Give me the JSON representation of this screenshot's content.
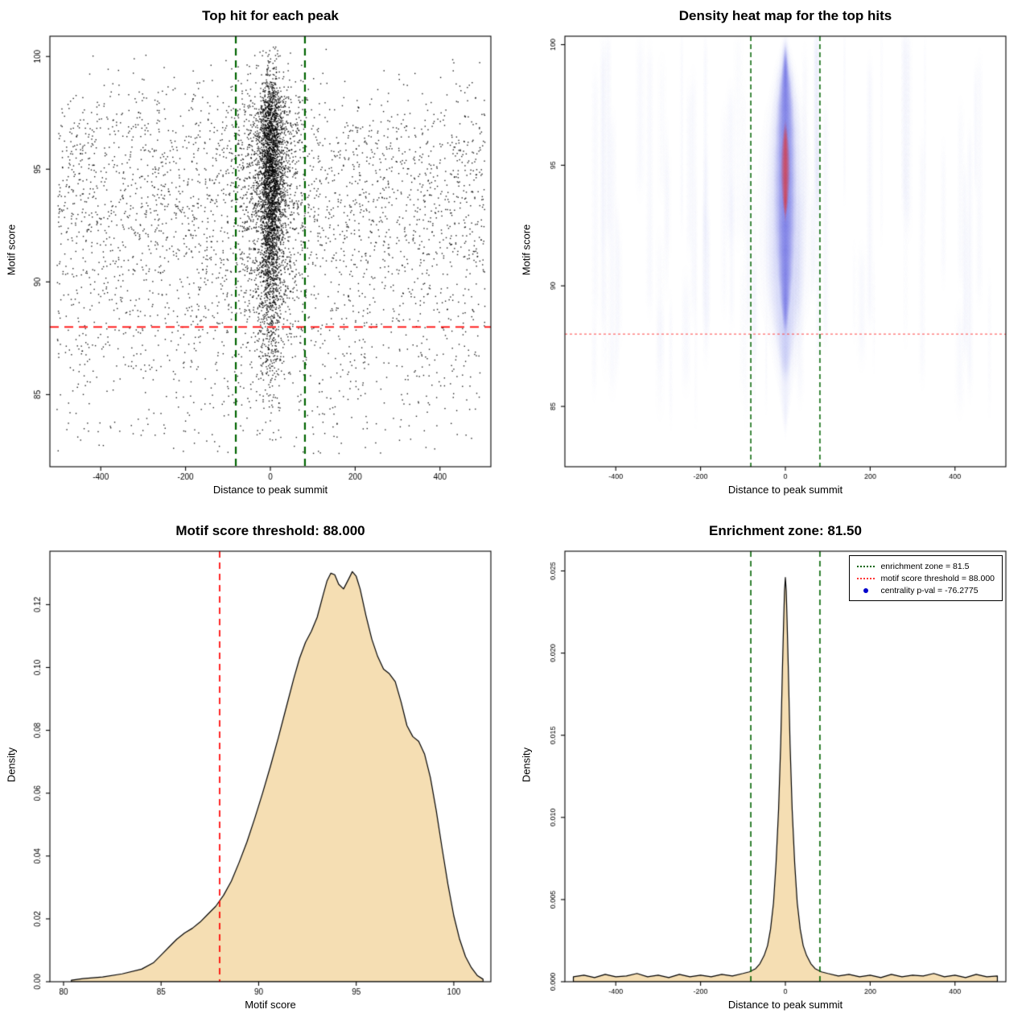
{
  "page": {
    "background": "#ffffff"
  },
  "chart_data": [
    {
      "id": "top-hit-scatter",
      "type": "scatter",
      "title": "Top hit for each peak",
      "xlabel": "Distance to peak summit",
      "ylabel": "Motif score",
      "xlim": [
        -520,
        520
      ],
      "ylim": [
        81.8,
        100.9
      ],
      "xticks": [
        {
          "v": -400,
          "label": "-400"
        },
        {
          "v": -200,
          "label": "-200"
        },
        {
          "v": 0,
          "label": "0"
        },
        {
          "v": 200,
          "label": "200"
        },
        {
          "v": 400,
          "label": "400"
        }
      ],
      "yticks": [
        {
          "v": 85,
          "label": "85"
        },
        {
          "v": 90,
          "label": "90"
        },
        {
          "v": 95,
          "label": "95"
        },
        {
          "v": 100,
          "label": "100"
        }
      ],
      "point_color": "#000000",
      "reference_lines": {
        "motif_score_threshold": {
          "value": 88,
          "orientation": "horizontal",
          "color": "#ff0000",
          "style": "dashed"
        },
        "enrichment_zone": {
          "values": [
            -81.5,
            81.5
          ],
          "orientation": "vertical",
          "color": "#006400",
          "style": "dashed"
        }
      },
      "points": {
        "seed": 1234,
        "n_background": 3200,
        "n_mid": 1400,
        "n_core": 2600,
        "mid_sigma_x": 38,
        "core_sigma_x": 13,
        "background_y_mix": [
          [
            0.16,
            96.8,
            1.4
          ],
          [
            0.3,
            94.2,
            1.6
          ],
          [
            0.22,
            92.0,
            1.8
          ],
          [
            0.18,
            89.5,
            2.0
          ],
          [
            0.09,
            86.5,
            1.8
          ],
          [
            0.05,
            84.3,
            1.5
          ]
        ],
        "cluster_y_mix": [
          [
            0.25,
            97.0,
            1.3
          ],
          [
            0.4,
            94.5,
            1.7
          ],
          [
            0.2,
            92.0,
            1.8
          ],
          [
            0.12,
            89.5,
            2.0
          ],
          [
            0.03,
            87.0,
            1.5
          ]
        ]
      }
    },
    {
      "id": "density-heatmap",
      "type": "heatmap",
      "title": "Density heat map for the top hits",
      "xlabel": "Distance to peak summit",
      "ylabel": "Motif score",
      "xlim": [
        -520,
        520
      ],
      "ylim": [
        82.5,
        100.35
      ],
      "xticks": [
        {
          "v": -400,
          "label": "-400"
        },
        {
          "v": -200,
          "label": "-200"
        },
        {
          "v": 0,
          "label": "0"
        },
        {
          "v": 200,
          "label": "200"
        },
        {
          "v": 400,
          "label": "400"
        }
      ],
      "yticks": [
        {
          "v": 85,
          "label": "85"
        },
        {
          "v": 90,
          "label": "90"
        },
        {
          "v": 95,
          "label": "95"
        },
        {
          "v": 100,
          "label": "100"
        }
      ],
      "center": {
        "x": 0,
        "y_peak": 94.8
      },
      "colors": {
        "halo": [
          122,
          134,
          232
        ],
        "mid": [
          58,
          70,
          222
        ],
        "core": [
          8,
          8,
          205
        ],
        "hot": [
          255,
          30,
          0
        ],
        "streak": [
          150,
          160,
          236
        ]
      },
      "halo_profile": [
        [
          84.3,
          5
        ],
        [
          85,
          12
        ],
        [
          86,
          22
        ],
        [
          87,
          34
        ],
        [
          88,
          48
        ],
        [
          89,
          62
        ],
        [
          90,
          72
        ],
        [
          91,
          78
        ],
        [
          92,
          80
        ],
        [
          93,
          78
        ],
        [
          94,
          74
        ],
        [
          95,
          70
        ],
        [
          96,
          64
        ],
        [
          97,
          55
        ],
        [
          98,
          42
        ],
        [
          99,
          28
        ],
        [
          99.6,
          16
        ],
        [
          100.1,
          8
        ]
      ],
      "mid_profile": [
        [
          86.5,
          12
        ],
        [
          87.5,
          22
        ],
        [
          88.5,
          34
        ],
        [
          89.5,
          44
        ],
        [
          90.5,
          50
        ],
        [
          91.5,
          52
        ],
        [
          92.5,
          52
        ],
        [
          93.5,
          50
        ],
        [
          94.5,
          47
        ],
        [
          95.5,
          44
        ],
        [
          96.5,
          40
        ],
        [
          97.5,
          33
        ],
        [
          98.5,
          24
        ],
        [
          99.2,
          14
        ],
        [
          99.8,
          7
        ]
      ],
      "core_profile": [
        [
          88.5,
          6
        ],
        [
          89.5,
          14
        ],
        [
          90.5,
          20
        ],
        [
          91.5,
          24
        ],
        [
          92.5,
          27
        ],
        [
          93.5,
          28
        ],
        [
          94.5,
          28
        ],
        [
          95.5,
          27
        ],
        [
          96.5,
          25
        ],
        [
          97.5,
          21
        ],
        [
          98.3,
          15
        ],
        [
          98.9,
          9
        ],
        [
          99.5,
          4
        ]
      ],
      "hot_profile": [
        [
          93.1,
          3
        ],
        [
          93.5,
          7
        ],
        [
          94,
          10
        ],
        [
          94.5,
          12
        ],
        [
          95,
          12
        ],
        [
          95.5,
          11
        ],
        [
          96,
          8
        ],
        [
          96.5,
          4
        ]
      ],
      "streaks": {
        "count": 70,
        "seed": 77
      },
      "reference_lines": {
        "motif_score_threshold": {
          "value": 88,
          "orientation": "horizontal",
          "color": "#ff4444",
          "style": "dotted"
        },
        "enrichment_zone": {
          "values": [
            -81.5,
            81.5
          ],
          "orientation": "vertical",
          "color": "#006400",
          "style": "dashed"
        }
      }
    },
    {
      "id": "motif-score-density",
      "type": "area",
      "title": "Motif score threshold: 88.000",
      "xlabel": "Motif score",
      "ylabel": "Density",
      "xlim": [
        79.3,
        101.9
      ],
      "ylim": [
        0,
        0.137
      ],
      "fill": "#f5deb3",
      "stroke": "#000000",
      "xticks": [
        {
          "v": 80,
          "label": "80"
        },
        {
          "v": 85,
          "label": "85"
        },
        {
          "v": 90,
          "label": "90"
        },
        {
          "v": 95,
          "label": "95"
        },
        {
          "v": 100,
          "label": "100"
        }
      ],
      "yticks": [
        {
          "v": 0,
          "label": "0.00"
        },
        {
          "v": 0.02,
          "label": "0.02"
        },
        {
          "v": 0.04,
          "label": "0.04"
        },
        {
          "v": 0.06,
          "label": "0.06"
        },
        {
          "v": 0.08,
          "label": "0.08"
        },
        {
          "v": 0.1,
          "label": "0.10"
        },
        {
          "v": 0.12,
          "label": "0.12"
        }
      ],
      "reference_lines": {
        "motif_score_threshold": {
          "value": 88,
          "orientation": "vertical",
          "color": "#ff0000",
          "style": "dashed"
        }
      },
      "points": [
        [
          80.4,
          0.0005
        ],
        [
          81,
          0.001
        ],
        [
          82,
          0.0015
        ],
        [
          83,
          0.0025
        ],
        [
          84,
          0.004
        ],
        [
          84.6,
          0.006
        ],
        [
          85,
          0.0085
        ],
        [
          85.4,
          0.011
        ],
        [
          85.8,
          0.0135
        ],
        [
          86.2,
          0.0155
        ],
        [
          86.6,
          0.017
        ],
        [
          87,
          0.019
        ],
        [
          87.4,
          0.0215
        ],
        [
          87.8,
          0.024
        ],
        [
          88.2,
          0.0275
        ],
        [
          88.6,
          0.032
        ],
        [
          89,
          0.038
        ],
        [
          89.4,
          0.0445
        ],
        [
          89.8,
          0.052
        ],
        [
          90.2,
          0.06
        ],
        [
          90.6,
          0.0685
        ],
        [
          91,
          0.0775
        ],
        [
          91.4,
          0.087
        ],
        [
          91.8,
          0.0965
        ],
        [
          92.1,
          0.103
        ],
        [
          92.4,
          0.108
        ],
        [
          92.7,
          0.1115
        ],
        [
          93,
          0.116
        ],
        [
          93.3,
          0.123
        ],
        [
          93.5,
          0.1275
        ],
        [
          93.7,
          0.13
        ],
        [
          93.9,
          0.1295
        ],
        [
          94.1,
          0.1265
        ],
        [
          94.35,
          0.125
        ],
        [
          94.6,
          0.128
        ],
        [
          94.8,
          0.1305
        ],
        [
          95,
          0.129
        ],
        [
          95.2,
          0.125
        ],
        [
          95.5,
          0.1165
        ],
        [
          95.8,
          0.109
        ],
        [
          96.1,
          0.1035
        ],
        [
          96.4,
          0.0995
        ],
        [
          96.7,
          0.098
        ],
        [
          97,
          0.0955
        ],
        [
          97.3,
          0.089
        ],
        [
          97.6,
          0.0815
        ],
        [
          97.9,
          0.078
        ],
        [
          98.2,
          0.0765
        ],
        [
          98.5,
          0.0725
        ],
        [
          98.8,
          0.065
        ],
        [
          99.1,
          0.0545
        ],
        [
          99.4,
          0.0425
        ],
        [
          99.7,
          0.031
        ],
        [
          100,
          0.021
        ],
        [
          100.3,
          0.0135
        ],
        [
          100.6,
          0.008
        ],
        [
          100.9,
          0.0045
        ],
        [
          101.2,
          0.002
        ],
        [
          101.5,
          0.0008
        ]
      ]
    },
    {
      "id": "distance-density",
      "type": "area",
      "title": "Enrichment zone: 81.50",
      "xlabel": "Distance to peak summit",
      "ylabel": "Density",
      "xlim": [
        -520,
        520
      ],
      "ylim": [
        0,
        0.0262
      ],
      "fill": "#f5deb3",
      "stroke": "#000000",
      "xticks": [
        {
          "v": -400,
          "label": "-400"
        },
        {
          "v": -200,
          "label": "-200"
        },
        {
          "v": 0,
          "label": "0"
        },
        {
          "v": 200,
          "label": "200"
        },
        {
          "v": 400,
          "label": "400"
        }
      ],
      "yticks": [
        {
          "v": 0,
          "label": "0.000"
        },
        {
          "v": 0.005,
          "label": "0.005"
        },
        {
          "v": 0.01,
          "label": "0.010"
        },
        {
          "v": 0.015,
          "label": "0.015"
        },
        {
          "v": 0.02,
          "label": "0.020"
        },
        {
          "v": 0.025,
          "label": "0.025"
        }
      ],
      "reference_lines": {
        "enrichment_zone": {
          "values": [
            -81.5,
            81.5
          ],
          "orientation": "vertical",
          "color": "#006400",
          "style": "dashed"
        }
      },
      "legend": {
        "items": [
          {
            "label": "enrichment zone = 81.5",
            "type": "line",
            "color": "#006400"
          },
          {
            "label": "motif score threshold = 88.000",
            "type": "line",
            "color": "#ff3333"
          },
          {
            "label": "centrality p-val = -76.2775",
            "type": "point",
            "color": "#0000cc"
          }
        ]
      },
      "points": [
        [
          -500,
          0.0003
        ],
        [
          -475,
          0.0004
        ],
        [
          -450,
          0.00025
        ],
        [
          -425,
          0.00045
        ],
        [
          -400,
          0.0003
        ],
        [
          -375,
          0.00035
        ],
        [
          -350,
          0.0005
        ],
        [
          -325,
          0.0003
        ],
        [
          -300,
          0.0004
        ],
        [
          -275,
          0.00025
        ],
        [
          -250,
          0.00045
        ],
        [
          -225,
          0.0003
        ],
        [
          -200,
          0.0004
        ],
        [
          -175,
          0.0003
        ],
        [
          -150,
          0.00045
        ],
        [
          -125,
          0.00035
        ],
        [
          -100,
          0.0005
        ],
        [
          -85,
          0.0006
        ],
        [
          -70,
          0.0008
        ],
        [
          -60,
          0.0011
        ],
        [
          -50,
          0.0016
        ],
        [
          -42,
          0.0022
        ],
        [
          -35,
          0.0032
        ],
        [
          -28,
          0.0048
        ],
        [
          -22,
          0.0072
        ],
        [
          -16,
          0.0105
        ],
        [
          -11,
          0.0145
        ],
        [
          -7,
          0.019
        ],
        [
          -4,
          0.022
        ],
        [
          -2,
          0.0238
        ],
        [
          0,
          0.0246
        ],
        [
          2,
          0.0238
        ],
        [
          4,
          0.022
        ],
        [
          7,
          0.019
        ],
        [
          11,
          0.0145
        ],
        [
          16,
          0.0105
        ],
        [
          22,
          0.0072
        ],
        [
          28,
          0.0048
        ],
        [
          35,
          0.0032
        ],
        [
          42,
          0.0022
        ],
        [
          50,
          0.0016
        ],
        [
          60,
          0.0011
        ],
        [
          70,
          0.0008
        ],
        [
          85,
          0.0006
        ],
        [
          100,
          0.0005
        ],
        [
          125,
          0.00035
        ],
        [
          150,
          0.00045
        ],
        [
          175,
          0.0003
        ],
        [
          200,
          0.0004
        ],
        [
          225,
          0.00025
        ],
        [
          250,
          0.00045
        ],
        [
          275,
          0.0003
        ],
        [
          300,
          0.0004
        ],
        [
          325,
          0.00035
        ],
        [
          350,
          0.0005
        ],
        [
          375,
          0.0003
        ],
        [
          400,
          0.0004
        ],
        [
          425,
          0.00025
        ],
        [
          450,
          0.00045
        ],
        [
          475,
          0.0003
        ],
        [
          500,
          0.00035
        ]
      ]
    }
  ]
}
